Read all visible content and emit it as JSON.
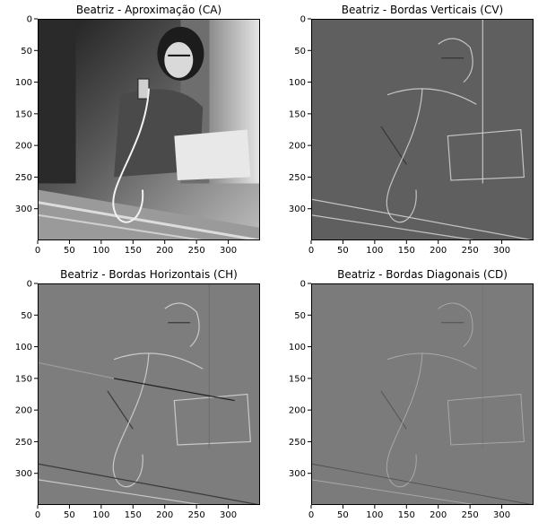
{
  "chart_data": [
    {
      "type": "heatmap",
      "title": "Beatriz - Aproximação (CA)",
      "colormap": "gray",
      "content": "wavelet-approximation",
      "xlim": [
        0,
        350
      ],
      "ylim": [
        350,
        0
      ],
      "xticks": [
        0,
        50,
        100,
        150,
        200,
        250,
        300
      ],
      "yticks": [
        0,
        50,
        100,
        150,
        200,
        250,
        300
      ]
    },
    {
      "type": "heatmap",
      "title": "Beatriz - Bordas Verticais (CV)",
      "colormap": "gray",
      "content": "vertical-edges",
      "xlim": [
        0,
        350
      ],
      "ylim": [
        350,
        0
      ],
      "xticks": [
        0,
        50,
        100,
        150,
        200,
        250,
        300
      ],
      "yticks": [
        0,
        50,
        100,
        150,
        200,
        250,
        300
      ]
    },
    {
      "type": "heatmap",
      "title": "Beatriz - Bordas Horizontais (CH)",
      "colormap": "gray",
      "content": "horizontal-edges",
      "xlim": [
        0,
        350
      ],
      "ylim": [
        350,
        0
      ],
      "xticks": [
        0,
        50,
        100,
        150,
        200,
        250,
        300
      ],
      "yticks": [
        0,
        50,
        100,
        150,
        200,
        250,
        300
      ]
    },
    {
      "type": "heatmap",
      "title": "Beatriz - Bordas Diagonais (CD)",
      "colormap": "gray",
      "content": "diagonal-edges",
      "xlim": [
        0,
        350
      ],
      "ylim": [
        350,
        0
      ],
      "xticks": [
        0,
        50,
        100,
        150,
        200,
        250,
        300
      ],
      "yticks": [
        0,
        50,
        100,
        150,
        200,
        250,
        300
      ]
    }
  ]
}
